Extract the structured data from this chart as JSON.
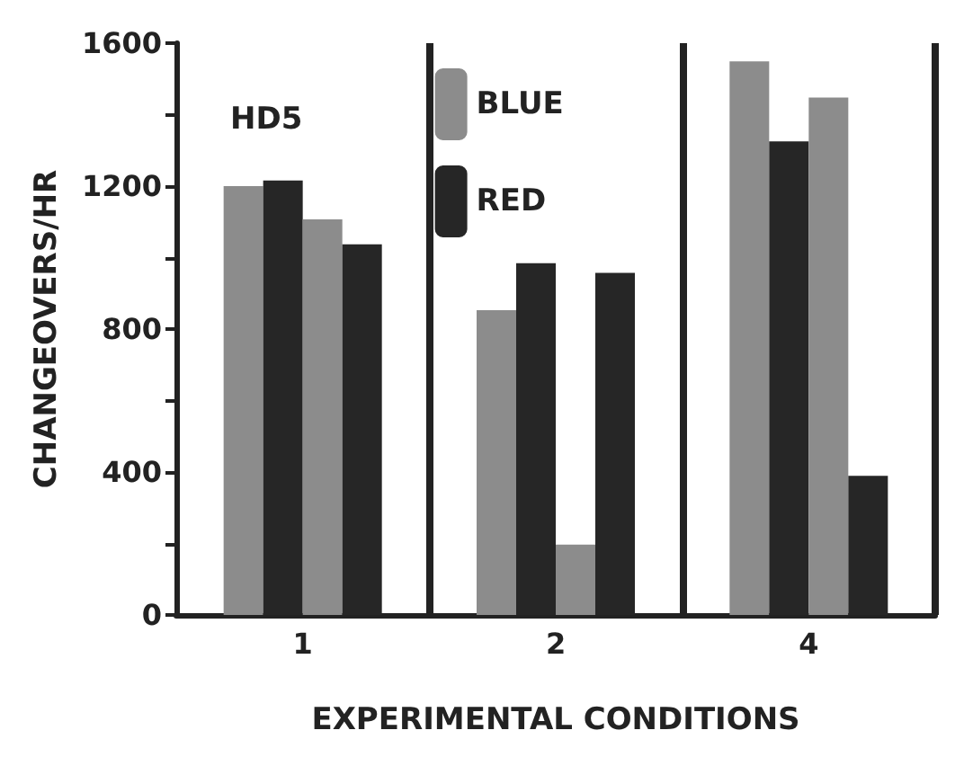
{
  "chart_data": {
    "type": "bar",
    "xlabel": "EXPERIMENTAL CONDITIONS",
    "ylabel": "CHANGEOVERS/HR",
    "categories": [
      "1",
      "2",
      "4"
    ],
    "series": [
      {
        "name": "BLUE",
        "color": "#8c8c8c",
        "values": [
          1200,
          853,
          1549
        ]
      },
      {
        "name": "RED",
        "color": "#262626",
        "values": [
          1216,
          984,
          1325
        ]
      },
      {
        "color": "#8c8c8c",
        "values": [
          1107,
          197,
          1448
        ]
      },
      {
        "color": "#262626",
        "values": [
          1037,
          957,
          389
        ]
      }
    ],
    "ylim": [
      0,
      1600
    ],
    "yticks": [
      0,
      {
        "value": 200,
        "label": null
      },
      400,
      {
        "value": 600,
        "label": null
      },
      800,
      {
        "value": 1000,
        "label": null
      },
      1200,
      {
        "value": 1400,
        "label": null
      },
      1600
    ],
    "annotations": [
      "HD5"
    ],
    "grid": "x",
    "legend": "top"
  }
}
